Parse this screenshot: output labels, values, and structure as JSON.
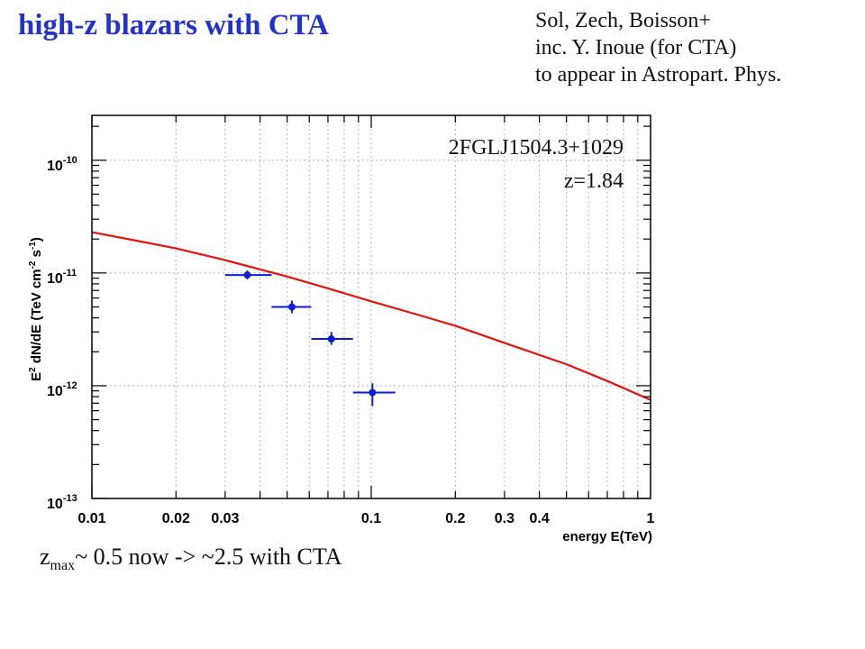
{
  "slide": {
    "title": "high-z blazars with CTA",
    "citation": [
      "Sol, Zech, Boisson+",
      "inc. Y. Inoue (for CTA)",
      "to appear in Astropart. Phys."
    ],
    "note": {
      "prefix": "z",
      "subscript": "max",
      "suffix": "~ 0.5 now -> ~2.5 with CTA"
    }
  },
  "chart_data": {
    "type": "scatter",
    "xlabel": "energy E(TeV)",
    "ylabel_parts": {
      "base": "E",
      "sup1": "2",
      "mid": " dN/dE (TeV cm",
      "sup2": "-2",
      "mid2": " s",
      "sup3": "-1",
      "end": ")"
    },
    "xscale": "log",
    "yscale": "log",
    "xlim": [
      0.01,
      1
    ],
    "ylim": [
      1e-13,
      2.5e-10
    ],
    "grid": true,
    "x_ticks": [
      {
        "value": 0.01,
        "label": "0.01"
      },
      {
        "value": 0.02,
        "label": "0.02"
      },
      {
        "value": 0.03,
        "label": "0.03"
      },
      {
        "value": 0.1,
        "label": "0.1"
      },
      {
        "value": 0.2,
        "label": "0.2"
      },
      {
        "value": 0.3,
        "label": "0.3"
      },
      {
        "value": 0.4,
        "label": "0.4"
      },
      {
        "value": 1,
        "label": "1"
      }
    ],
    "y_ticks": [
      {
        "value": 1e-13,
        "base": "10",
        "exp": "-13"
      },
      {
        "value": 1e-12,
        "base": "10",
        "exp": "-12"
      },
      {
        "value": 1e-11,
        "base": "10",
        "exp": "-11"
      },
      {
        "value": 1e-10,
        "base": "10",
        "exp": "-10"
      }
    ],
    "annotations": {
      "source": "2FGLJ1504.3+1029",
      "redshift": "z=1.84"
    },
    "series": [
      {
        "kind": "points",
        "color": "#0a1fd6",
        "points": [
          {
            "x": 0.036,
            "y": 9.6e-12,
            "xlo": 0.03,
            "xhi": 0.044,
            "ylo": 8.8e-12,
            "yhi": 1.05e-11
          },
          {
            "x": 0.052,
            "y": 5e-12,
            "xlo": 0.044,
            "xhi": 0.061,
            "ylo": 4.4e-12,
            "yhi": 5.7e-12
          },
          {
            "x": 0.072,
            "y": 2.6e-12,
            "xlo": 0.061,
            "xhi": 0.086,
            "ylo": 2.3e-12,
            "yhi": 3e-12
          },
          {
            "x": 0.101,
            "y": 8.7e-13,
            "xlo": 0.086,
            "xhi": 0.122,
            "ylo": 6.6e-13,
            "yhi": 1.05e-12
          }
        ]
      },
      {
        "kind": "curve",
        "color": "#e8120c",
        "x": [
          0.01,
          0.015,
          0.02,
          0.03,
          0.05,
          0.07,
          0.1,
          0.15,
          0.2,
          0.3,
          0.5,
          0.7,
          1.0
        ],
        "y": [
          2.3e-11,
          1.9e-11,
          1.65e-11,
          1.3e-11,
          9.3e-12,
          7.3e-12,
          5.6e-12,
          4.2e-12,
          3.4e-12,
          2.4e-12,
          1.55e-12,
          1.1e-12,
          7.5e-13
        ]
      }
    ]
  }
}
